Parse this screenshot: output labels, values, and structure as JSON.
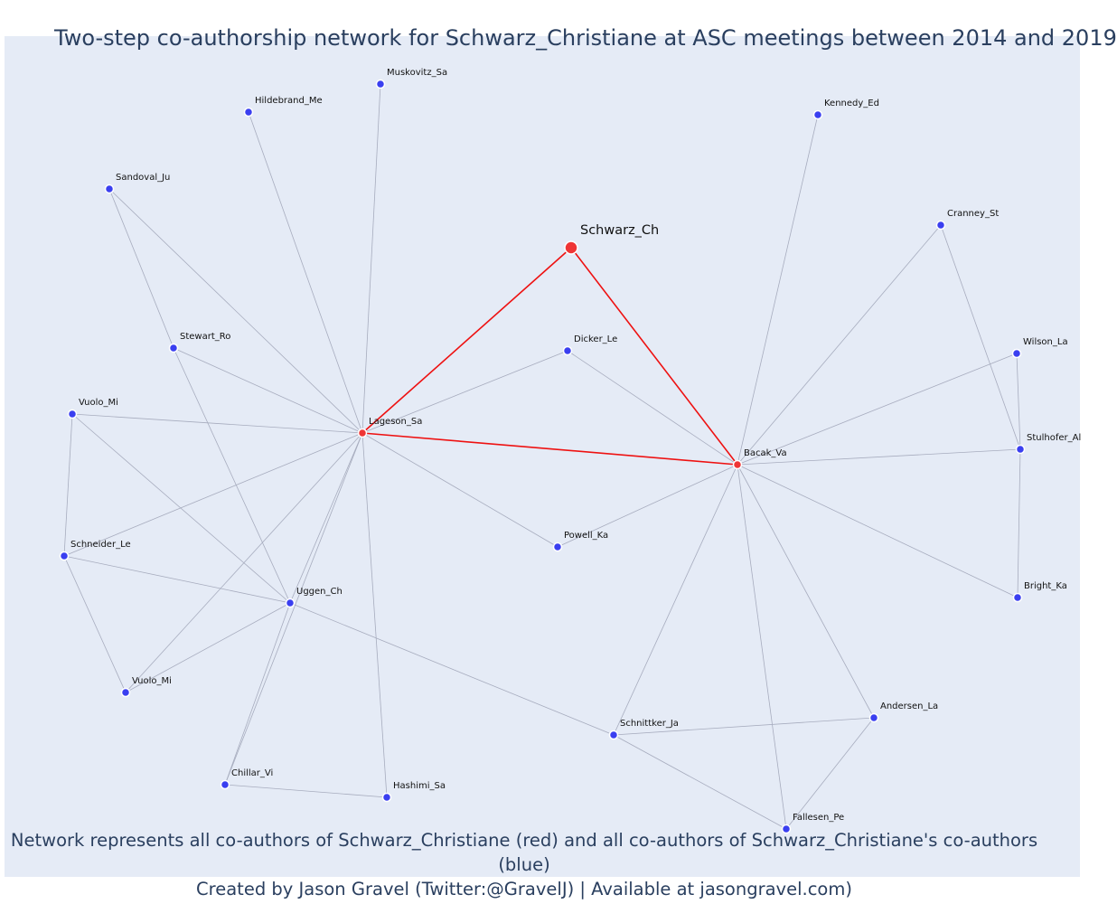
{
  "title": "Two-step co-authorship network for Schwarz_Christiane at ASC meetings between 2014 and 2019",
  "footer": {
    "line1": "Network represents all co-authors of Schwarz_Christiane (red) and all co-authors of Schwarz_Christiane's co-authors (blue)",
    "line2": "Created by Jason Gravel (Twitter:@GravelJ) | Available at jasongravel.com)"
  },
  "colors": {
    "background": "#e5ebf6",
    "first_step": "#ef3535",
    "second_step": "#3a3ff0",
    "edge": "#a7acbe",
    "text": "#2a3f5f"
  },
  "nodes": [
    {
      "id": "Schwarz_Ch",
      "label": "Schwarz_Ch",
      "group": "focal"
    },
    {
      "id": "Lageson_Sa",
      "label": "Lageson_Sa",
      "group": "red"
    },
    {
      "id": "Bacak_Va",
      "label": "Bacak_Va",
      "group": "red"
    },
    {
      "id": "Muskovitz_Sa",
      "label": "Muskovitz_Sa",
      "group": "blue"
    },
    {
      "id": "Hildebrand_Me",
      "label": "Hildebrand_Me",
      "group": "blue"
    },
    {
      "id": "Sandoval_Ju",
      "label": "Sandoval_Ju",
      "group": "blue"
    },
    {
      "id": "Stewart_Ro",
      "label": "Stewart_Ro",
      "group": "blue"
    },
    {
      "id": "Vuolo_Mi_1",
      "label": "Vuolo_Mi",
      "group": "blue"
    },
    {
      "id": "Schneider_Le",
      "label": "Schneider_Le",
      "group": "blue"
    },
    {
      "id": "Uggen_Ch",
      "label": "Uggen_Ch",
      "group": "blue"
    },
    {
      "id": "Vuolo_Mi_2",
      "label": "Vuolo_Mi",
      "group": "blue"
    },
    {
      "id": "Chillar_Vi",
      "label": "Chillar_Vi",
      "group": "blue"
    },
    {
      "id": "Hashimi_Sa",
      "label": "Hashimi_Sa",
      "group": "blue"
    },
    {
      "id": "Dicker_Le",
      "label": "Dicker_Le",
      "group": "blue"
    },
    {
      "id": "Powell_Ka",
      "label": "Powell_Ka",
      "group": "blue"
    },
    {
      "id": "Kennedy_Ed",
      "label": "Kennedy_Ed",
      "group": "blue"
    },
    {
      "id": "Cranney_St",
      "label": "Cranney_St",
      "group": "blue"
    },
    {
      "id": "Wilson_La",
      "label": "Wilson_La",
      "group": "blue"
    },
    {
      "id": "Stulhofer_Al",
      "label": "Stulhofer_Al",
      "group": "blue"
    },
    {
      "id": "Bright_Ka",
      "label": "Bright_Ka",
      "group": "blue"
    },
    {
      "id": "Andersen_La",
      "label": "Andersen_La",
      "group": "blue"
    },
    {
      "id": "Schnittker_Ja",
      "label": "Schnittker_Ja",
      "group": "blue"
    },
    {
      "id": "Fallesen_Pe",
      "label": "Fallesen_Pe",
      "group": "blue"
    }
  ],
  "edges": [
    {
      "source": "Schwarz_Ch",
      "target": "Lageson_Sa",
      "group": "red"
    },
    {
      "source": "Schwarz_Ch",
      "target": "Bacak_Va",
      "group": "red"
    },
    {
      "source": "Lageson_Sa",
      "target": "Bacak_Va",
      "group": "red"
    },
    {
      "source": "Lageson_Sa",
      "target": "Muskovitz_Sa",
      "group": "blue"
    },
    {
      "source": "Lageson_Sa",
      "target": "Hildebrand_Me",
      "group": "blue"
    },
    {
      "source": "Lageson_Sa",
      "target": "Sandoval_Ju",
      "group": "blue"
    },
    {
      "source": "Lageson_Sa",
      "target": "Stewart_Ro",
      "group": "blue"
    },
    {
      "source": "Lageson_Sa",
      "target": "Vuolo_Mi_1",
      "group": "blue"
    },
    {
      "source": "Lageson_Sa",
      "target": "Schneider_Le",
      "group": "blue"
    },
    {
      "source": "Lageson_Sa",
      "target": "Uggen_Ch",
      "group": "blue"
    },
    {
      "source": "Lageson_Sa",
      "target": "Vuolo_Mi_2",
      "group": "blue"
    },
    {
      "source": "Lageson_Sa",
      "target": "Chillar_Vi",
      "group": "blue"
    },
    {
      "source": "Lageson_Sa",
      "target": "Hashimi_Sa",
      "group": "blue"
    },
    {
      "source": "Lageson_Sa",
      "target": "Dicker_Le",
      "group": "blue"
    },
    {
      "source": "Lageson_Sa",
      "target": "Powell_Ka",
      "group": "blue"
    },
    {
      "source": "Sandoval_Ju",
      "target": "Stewart_Ro",
      "group": "blue"
    },
    {
      "source": "Stewart_Ro",
      "target": "Uggen_Ch",
      "group": "blue"
    },
    {
      "source": "Vuolo_Mi_1",
      "target": "Schneider_Le",
      "group": "blue"
    },
    {
      "source": "Vuolo_Mi_1",
      "target": "Uggen_Ch",
      "group": "blue"
    },
    {
      "source": "Schneider_Le",
      "target": "Uggen_Ch",
      "group": "blue"
    },
    {
      "source": "Schneider_Le",
      "target": "Vuolo_Mi_2",
      "group": "blue"
    },
    {
      "source": "Uggen_Ch",
      "target": "Vuolo_Mi_2",
      "group": "blue"
    },
    {
      "source": "Uggen_Ch",
      "target": "Chillar_Vi",
      "group": "blue"
    },
    {
      "source": "Uggen_Ch",
      "target": "Schnittker_Ja",
      "group": "blue"
    },
    {
      "source": "Chillar_Vi",
      "target": "Hashimi_Sa",
      "group": "blue"
    },
    {
      "source": "Bacak_Va",
      "target": "Dicker_Le",
      "group": "blue"
    },
    {
      "source": "Bacak_Va",
      "target": "Powell_Ka",
      "group": "blue"
    },
    {
      "source": "Bacak_Va",
      "target": "Kennedy_Ed",
      "group": "blue"
    },
    {
      "source": "Bacak_Va",
      "target": "Cranney_St",
      "group": "blue"
    },
    {
      "source": "Bacak_Va",
      "target": "Wilson_La",
      "group": "blue"
    },
    {
      "source": "Bacak_Va",
      "target": "Stulhofer_Al",
      "group": "blue"
    },
    {
      "source": "Bacak_Va",
      "target": "Bright_Ka",
      "group": "blue"
    },
    {
      "source": "Bacak_Va",
      "target": "Andersen_La",
      "group": "blue"
    },
    {
      "source": "Bacak_Va",
      "target": "Schnittker_Ja",
      "group": "blue"
    },
    {
      "source": "Bacak_Va",
      "target": "Fallesen_Pe",
      "group": "blue"
    },
    {
      "source": "Cranney_St",
      "target": "Stulhofer_Al",
      "group": "blue"
    },
    {
      "source": "Wilson_La",
      "target": "Stulhofer_Al",
      "group": "blue"
    },
    {
      "source": "Stulhofer_Al",
      "target": "Bright_Ka",
      "group": "blue"
    },
    {
      "source": "Schnittker_Ja",
      "target": "Andersen_La",
      "group": "blue"
    },
    {
      "source": "Schnittker_Ja",
      "target": "Fallesen_Pe",
      "group": "blue"
    },
    {
      "source": "Andersen_La",
      "target": "Fallesen_Pe",
      "group": "blue"
    }
  ]
}
